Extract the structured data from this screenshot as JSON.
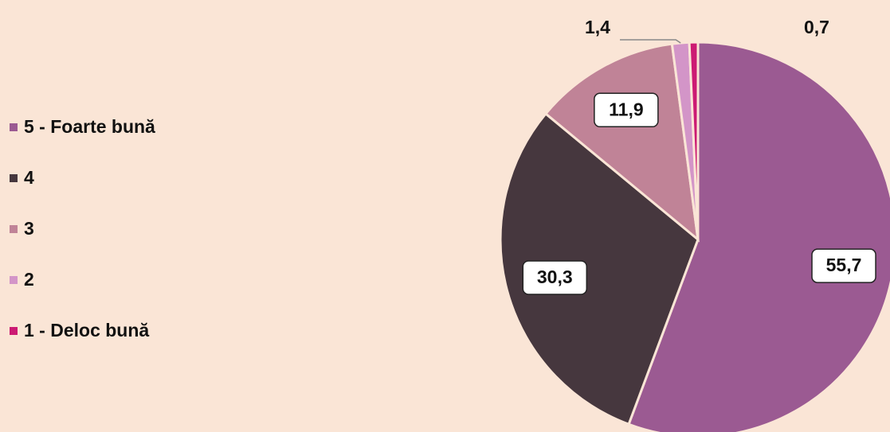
{
  "chart_data": {
    "type": "pie",
    "categories": [
      "5 - Foarte bună",
      "4",
      "3",
      "2",
      "1 - Deloc bună"
    ],
    "values": [
      55.7,
      30.3,
      11.9,
      1.4,
      0.7
    ],
    "value_labels": [
      "55,7",
      "30,3",
      "11,9",
      "1,4",
      "0,7"
    ],
    "colors": [
      "#9b5a92",
      "#46373e",
      "#c08397",
      "#d395c8",
      "#cc1a73"
    ],
    "legend": "left"
  }
}
